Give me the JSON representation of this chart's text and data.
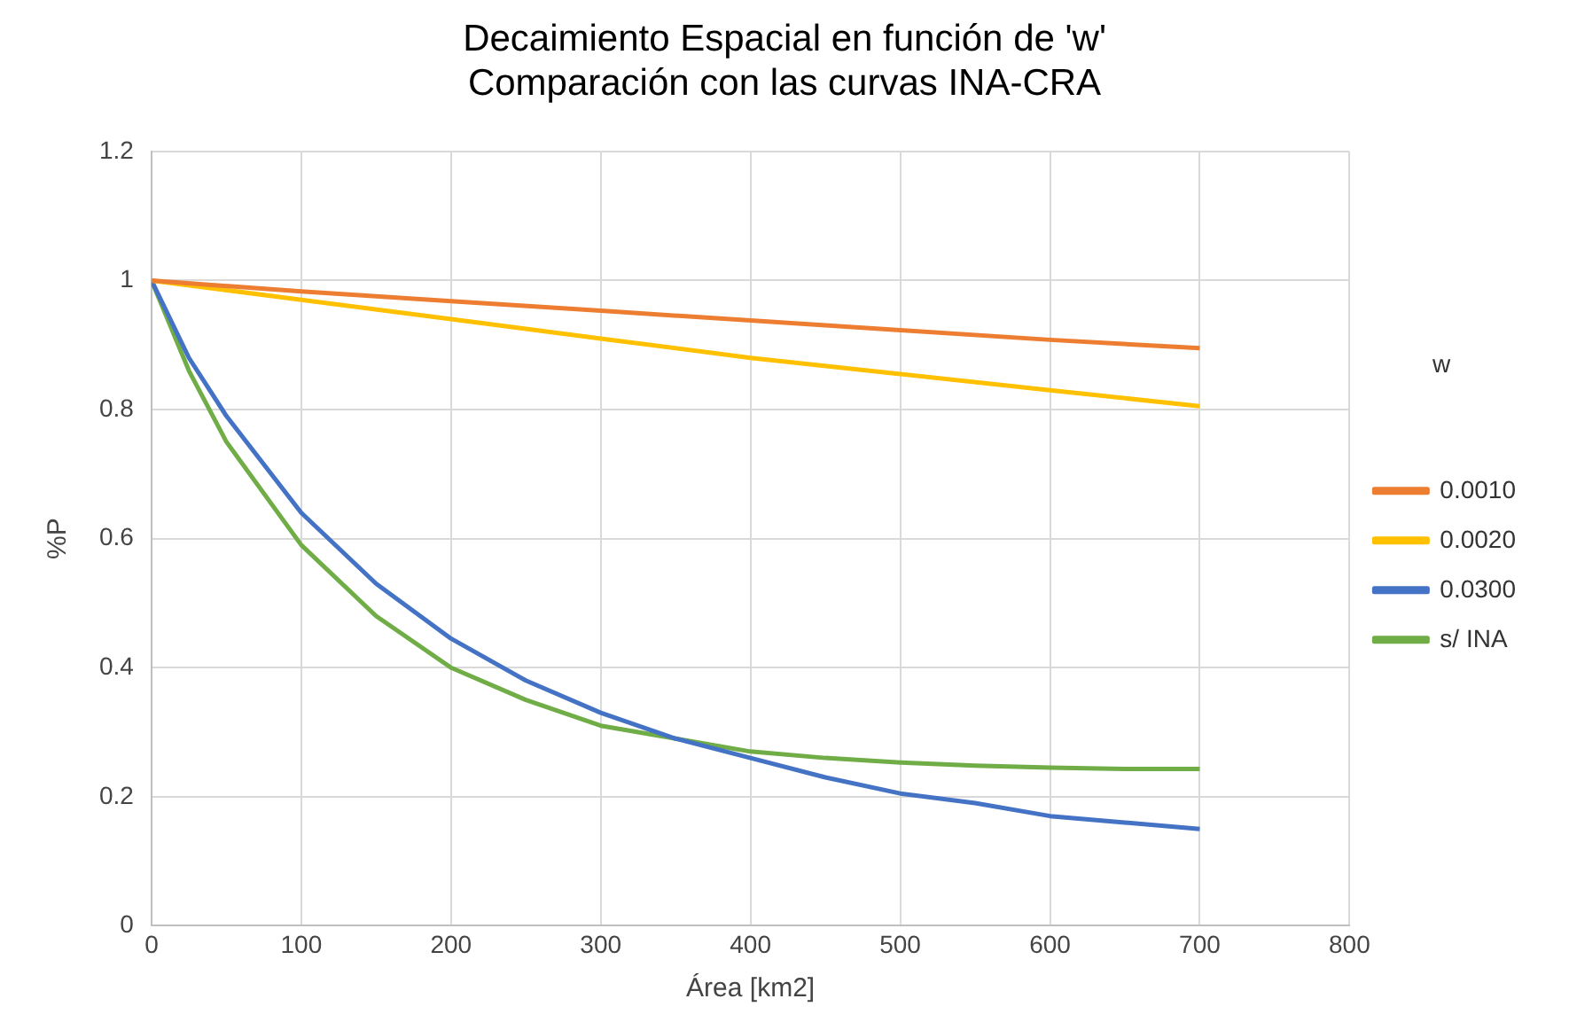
{
  "chart_data": {
    "type": "line",
    "title": "Decaimiento Espacial en función de 'w'\nComparación con las curvas INA-CRA",
    "xlabel": "Área [km2]",
    "ylabel": "%P",
    "legend_title": "w",
    "legend": "right",
    "grid": true,
    "marker": "none",
    "xlim": [
      0,
      800
    ],
    "xticks": [
      0,
      100,
      200,
      300,
      400,
      500,
      600,
      700,
      800
    ],
    "ylim": [
      0,
      1.2
    ],
    "yticks": [
      0,
      0.2,
      0.4,
      0.6,
      0.8,
      1,
      1.2
    ],
    "series": [
      {
        "name": "0.0010",
        "color": "#ed7d31",
        "x": [
          0,
          100,
          200,
          300,
          400,
          500,
          600,
          700
        ],
        "values": [
          1,
          0.983,
          0.968,
          0.953,
          0.938,
          0.923,
          0.908,
          0.895
        ]
      },
      {
        "name": "0.0020",
        "color": "#ffc000",
        "x": [
          0,
          100,
          200,
          300,
          400,
          500,
          600,
          700
        ],
        "values": [
          1,
          0.97,
          0.94,
          0.91,
          0.88,
          0.855,
          0.83,
          0.805
        ]
      },
      {
        "name": "0.0300",
        "color": "#4472c4",
        "x": [
          0,
          25,
          50,
          100,
          150,
          200,
          250,
          300,
          350,
          400,
          450,
          500,
          550,
          600,
          650,
          700
        ],
        "values": [
          1,
          0.88,
          0.79,
          0.64,
          0.53,
          0.445,
          0.38,
          0.33,
          0.29,
          0.26,
          0.23,
          0.205,
          0.19,
          0.17,
          0.16,
          0.15
        ]
      },
      {
        "name": "s/ INA",
        "color": "#70ad47",
        "x": [
          0,
          25,
          50,
          100,
          150,
          200,
          250,
          300,
          350,
          400,
          450,
          500,
          550,
          600,
          650,
          700
        ],
        "values": [
          1,
          0.86,
          0.75,
          0.59,
          0.48,
          0.4,
          0.35,
          0.31,
          0.29,
          0.27,
          0.26,
          0.253,
          0.248,
          0.245,
          0.243,
          0.243
        ]
      }
    ]
  }
}
